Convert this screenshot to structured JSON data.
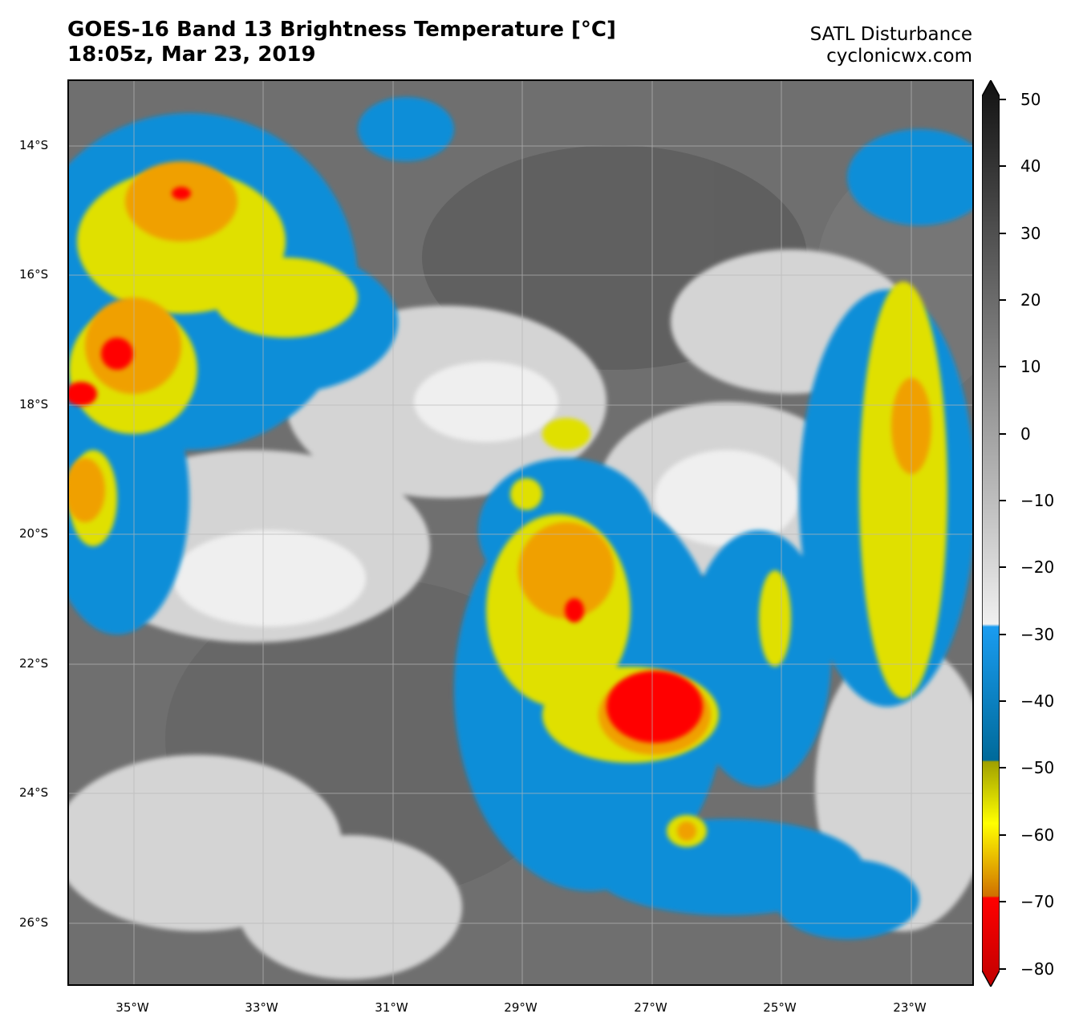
{
  "header": {
    "title_line1": "GOES-16 Band 13 Brightness Temperature [°C]",
    "title_line2": "18:05z, Mar 23, 2019",
    "credit_line1": "SATL Disturbance",
    "credit_line2": "cyclonicwx.com"
  },
  "map": {
    "lat_labels": [
      "14°S",
      "16°S",
      "18°S",
      "20°S",
      "22°S",
      "24°S",
      "26°S"
    ],
    "lon_labels": [
      "35°W",
      "33°W",
      "31°W",
      "29°W",
      "27°W",
      "25°W",
      "23°W"
    ],
    "colors": {
      "background": "#6f6f6f",
      "cloud_light": "#e6e6e6",
      "blue": "#0a8ed8",
      "yellow": "#e0e000",
      "orange": "#f0a000",
      "red": "#ff0000"
    }
  },
  "colorbar": {
    "ticks": [
      "50",
      "40",
      "30",
      "20",
      "10",
      "0",
      "−10",
      "−20",
      "−30",
      "−40",
      "−50",
      "−60",
      "−70",
      "−80"
    ],
    "range": [
      -80,
      50
    ],
    "units": "°C"
  }
}
